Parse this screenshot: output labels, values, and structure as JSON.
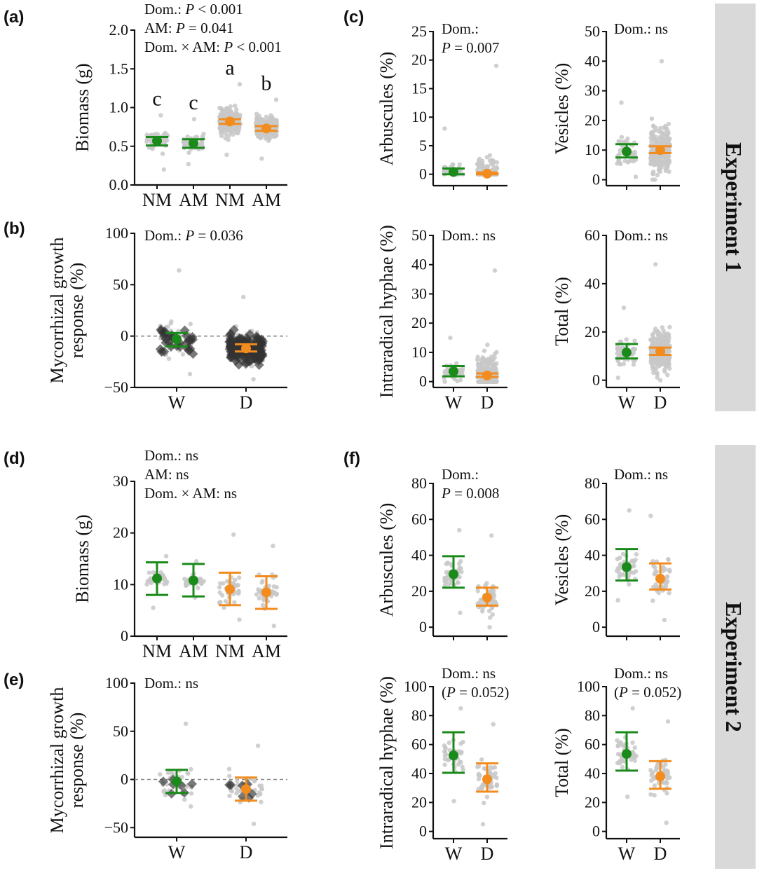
{
  "colors": {
    "wet": "#1a8a1a",
    "dry": "#f28c1e",
    "points": "#c8c8c8",
    "diamonds": "#333333",
    "band": "#d9d9d9"
  },
  "experiments": [
    "Experiment 1",
    "Experiment 2"
  ],
  "chart_data": [
    {
      "id": "a",
      "panel_label": "(a)",
      "type": "scatter",
      "ylabel": "Biomass (g)",
      "ylim": [
        0,
        2.0
      ],
      "yticks": [
        0.0,
        0.5,
        1.0,
        1.5,
        2.0
      ],
      "tick_format": 1,
      "categories": [
        "NM",
        "AM",
        "NM",
        "AM"
      ],
      "annotation": [
        "Dom.: P < 0.001",
        "AM: P = 0.041",
        "Dom. × AM: P < 0.001"
      ],
      "series": [
        {
          "name": "W NM",
          "group": "wet",
          "mean": 0.57,
          "ci": [
            0.51,
            0.62
          ],
          "letter": "c",
          "range": [
            0.2,
            0.9
          ],
          "n": 60
        },
        {
          "name": "W AM",
          "group": "wet",
          "mean": 0.54,
          "ci": [
            0.48,
            0.59
          ],
          "letter": "c",
          "range": [
            0.27,
            0.85
          ],
          "n": 60
        },
        {
          "name": "D NM",
          "group": "dry",
          "mean": 0.82,
          "ci": [
            0.79,
            0.85
          ],
          "letter": "a",
          "range": [
            0.39,
            1.3
          ],
          "n": 220
        },
        {
          "name": "D AM",
          "group": "dry",
          "mean": 0.73,
          "ci": [
            0.7,
            0.76
          ],
          "letter": "b",
          "range": [
            0.34,
            1.1
          ],
          "n": 220
        }
      ]
    },
    {
      "id": "b",
      "panel_label": "(b)",
      "type": "scatter",
      "ylabel": [
        "Mycorrhizal growth",
        "response (%)"
      ],
      "ylim": [
        -50,
        100
      ],
      "yticks": [
        -50,
        0,
        50,
        100
      ],
      "tick_format": 0,
      "categories": [
        "W",
        "D"
      ],
      "zero_line": true,
      "annotation": [
        "Dom.: P = 0.036"
      ],
      "series": [
        {
          "name": "W",
          "group": "wet",
          "mean": -3,
          "ci": [
            -10,
            3
          ],
          "range": [
            -37,
            64
          ],
          "n": 50,
          "diamonds": 30
        },
        {
          "name": "D",
          "group": "dry",
          "mean": -12,
          "ci": [
            -15,
            -8
          ],
          "range": [
            -42,
            38
          ],
          "n": 160,
          "diamonds": 140
        }
      ]
    },
    {
      "id": "c1",
      "panel_label": "(c)",
      "type": "scatter",
      "ylabel": "Arbuscules (%)",
      "ylim": [
        -2,
        25
      ],
      "yticks": [
        0,
        5,
        10,
        15,
        20,
        25
      ],
      "tick_format": 0,
      "categories": [
        "",
        ""
      ],
      "annotation": [
        "Dom.:",
        "P = 0.007"
      ],
      "series": [
        {
          "name": "W",
          "group": "wet",
          "mean": 0.4,
          "ci": [
            0,
            1.0
          ],
          "range": [
            0,
            8
          ],
          "n": 40
        },
        {
          "name": "D",
          "group": "dry",
          "mean": 0.1,
          "ci": [
            0,
            0.3
          ],
          "range": [
            0,
            19
          ],
          "n": 120
        }
      ]
    },
    {
      "id": "c2",
      "panel_label": "",
      "type": "scatter",
      "ylabel": "Vesicles (%)",
      "ylim": [
        -2,
        50
      ],
      "yticks": [
        0,
        10,
        20,
        30,
        40,
        50
      ],
      "tick_format": 0,
      "categories": [
        "",
        ""
      ],
      "annotation": [
        "Dom.: ns"
      ],
      "series": [
        {
          "name": "W",
          "group": "wet",
          "mean": 9.5,
          "ci": [
            7.5,
            12
          ],
          "range": [
            1,
            26
          ],
          "n": 50
        },
        {
          "name": "D",
          "group": "dry",
          "mean": 10,
          "ci": [
            9,
            11.3
          ],
          "range": [
            0,
            40
          ],
          "n": 250
        }
      ]
    },
    {
      "id": "c3",
      "panel_label": "",
      "type": "scatter",
      "ylabel": "Intraradical hyphae (%)",
      "ylim": [
        -2,
        50
      ],
      "yticks": [
        0,
        10,
        20,
        30,
        40,
        50
      ],
      "tick_format": 0,
      "categories": [
        "W",
        "D"
      ],
      "annotation": [
        "Dom.: ns"
      ],
      "series": [
        {
          "name": "W",
          "group": "wet",
          "mean": 3.5,
          "ci": [
            1.8,
            5.3
          ],
          "range": [
            0,
            15
          ],
          "n": 50
        },
        {
          "name": "D",
          "group": "dry",
          "mean": 2.1,
          "ci": [
            1.6,
            2.8
          ],
          "range": [
            0,
            38
          ],
          "n": 200
        }
      ]
    },
    {
      "id": "c4",
      "panel_label": "",
      "type": "scatter",
      "ylabel": "Total (%)",
      "ylim": [
        -3,
        60
      ],
      "yticks": [
        0,
        20,
        40,
        60
      ],
      "tick_format": 0,
      "categories": [
        "W",
        "D"
      ],
      "annotation": [
        "Dom.: ns"
      ],
      "series": [
        {
          "name": "W",
          "group": "wet",
          "mean": 11.5,
          "ci": [
            9,
            15
          ],
          "range": [
            1,
            30
          ],
          "n": 50
        },
        {
          "name": "D",
          "group": "dry",
          "mean": 12,
          "ci": [
            10.5,
            13.5
          ],
          "range": [
            0,
            48
          ],
          "n": 250
        }
      ]
    },
    {
      "id": "d",
      "panel_label": "(d)",
      "type": "scatter",
      "ylabel": "Biomass (g)",
      "ylim": [
        0,
        30
      ],
      "yticks": [
        0,
        10,
        20,
        30
      ],
      "tick_format": 0,
      "categories": [
        "NM",
        "AM",
        "NM",
        "AM"
      ],
      "annotation": [
        "Dom.: ns",
        "AM: ns",
        "Dom. × AM: ns"
      ],
      "series": [
        {
          "name": "W NM",
          "group": "wet",
          "mean": 11.2,
          "ci": [
            8.0,
            14.3
          ],
          "range": [
            5.5,
            15.5
          ],
          "n": 40
        },
        {
          "name": "W AM",
          "group": "wet",
          "mean": 10.8,
          "ci": [
            7.7,
            14.0
          ],
          "range": [
            7.5,
            14.5
          ],
          "n": 40
        },
        {
          "name": "D NM",
          "group": "dry",
          "mean": 9.1,
          "ci": [
            6.0,
            12.3
          ],
          "range": [
            3.2,
            19.7
          ],
          "n": 40
        },
        {
          "name": "D AM",
          "group": "dry",
          "mean": 8.5,
          "ci": [
            5.3,
            11.6
          ],
          "range": [
            2.0,
            17.5
          ],
          "n": 40
        }
      ]
    },
    {
      "id": "e",
      "panel_label": "(e)",
      "type": "scatter",
      "ylabel": [
        "Mycorrhizal growth",
        "response (%)"
      ],
      "ylim": [
        -60,
        100
      ],
      "yticks": [
        -50,
        0,
        50,
        100
      ],
      "tick_format": 0,
      "categories": [
        "W",
        "D"
      ],
      "zero_line": true,
      "annotation": [
        "Dom.: ns"
      ],
      "series": [
        {
          "name": "W",
          "group": "wet",
          "mean": -2,
          "ci": [
            -14,
            10
          ],
          "range": [
            -28,
            58
          ],
          "n": 35,
          "diamonds": 7
        },
        {
          "name": "D",
          "group": "dry",
          "mean": -10,
          "ci": [
            -22,
            2
          ],
          "range": [
            -46,
            35
          ],
          "n": 40,
          "diamonds": 7
        }
      ]
    },
    {
      "id": "f1",
      "panel_label": "(f)",
      "type": "scatter",
      "ylabel": "Arbuscules (%)",
      "ylim": [
        -5,
        80
      ],
      "yticks": [
        0,
        20,
        40,
        60,
        80
      ],
      "tick_format": 0,
      "categories": [
        "",
        ""
      ],
      "annotation": [
        "Dom.:",
        "P = 0.008"
      ],
      "series": [
        {
          "name": "W",
          "group": "wet",
          "mean": 29.5,
          "ci": [
            22,
            39.5
          ],
          "range": [
            8,
            54
          ],
          "n": 45
        },
        {
          "name": "D",
          "group": "dry",
          "mean": 16.5,
          "ci": [
            12,
            22
          ],
          "range": [
            0,
            51
          ],
          "n": 50
        }
      ]
    },
    {
      "id": "f2",
      "panel_label": "",
      "type": "scatter",
      "ylabel": "Vesicles (%)",
      "ylim": [
        -5,
        80
      ],
      "yticks": [
        0,
        20,
        40,
        60,
        80
      ],
      "tick_format": 0,
      "categories": [
        "",
        ""
      ],
      "annotation": [
        "Dom.: ns"
      ],
      "series": [
        {
          "name": "W",
          "group": "wet",
          "mean": 33.5,
          "ci": [
            26,
            43.5
          ],
          "range": [
            15,
            65
          ],
          "n": 45
        },
        {
          "name": "D",
          "group": "dry",
          "mean": 27,
          "ci": [
            21,
            35.5
          ],
          "range": [
            4,
            62
          ],
          "n": 50
        }
      ]
    },
    {
      "id": "f3",
      "panel_label": "",
      "type": "scatter",
      "ylabel": "Intraradical hyphae (%)",
      "ylim": [
        -5,
        100
      ],
      "yticks": [
        0,
        20,
        40,
        60,
        80,
        100
      ],
      "tick_format": 0,
      "categories": [
        "W",
        "D"
      ],
      "annotation": [
        "Dom.: ns",
        "(P = 0.052)"
      ],
      "series": [
        {
          "name": "W",
          "group": "wet",
          "mean": 52.5,
          "ci": [
            40.5,
            68.5
          ],
          "range": [
            21,
            85
          ],
          "n": 45
        },
        {
          "name": "D",
          "group": "dry",
          "mean": 36,
          "ci": [
            27.5,
            47
          ],
          "range": [
            5,
            74
          ],
          "n": 50
        }
      ]
    },
    {
      "id": "f4",
      "panel_label": "",
      "type": "scatter",
      "ylabel": "Total (%)",
      "ylim": [
        -5,
        100
      ],
      "yticks": [
        0,
        20,
        40,
        60,
        80,
        100
      ],
      "tick_format": 0,
      "categories": [
        "W",
        "D"
      ],
      "annotation": [
        "Dom.: ns",
        "(P = 0.052)"
      ],
      "series": [
        {
          "name": "W",
          "group": "wet",
          "mean": 53.5,
          "ci": [
            42,
            68.5
          ],
          "range": [
            24,
            85
          ],
          "n": 45
        },
        {
          "name": "D",
          "group": "dry",
          "mean": 38,
          "ci": [
            29.5,
            48.5
          ],
          "range": [
            6,
            76
          ],
          "n": 50
        }
      ]
    }
  ]
}
